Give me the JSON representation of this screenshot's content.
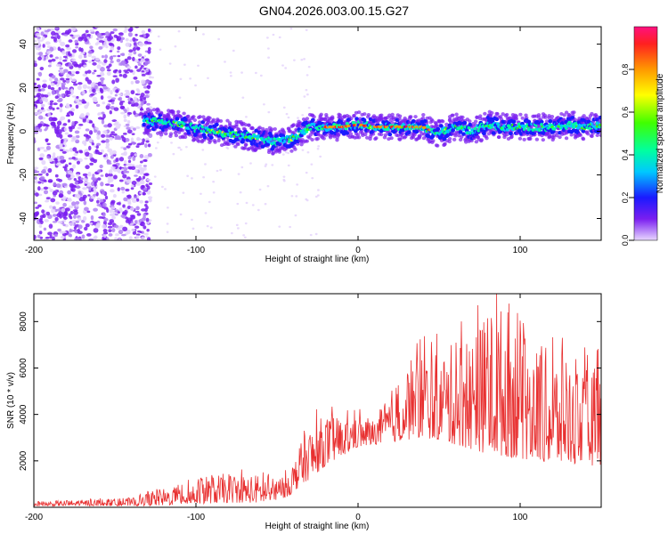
{
  "title": "GN04.2026.003.00.15.G27",
  "colors": {
    "snr_line": "#e83030",
    "dots_low": "#7a1ef0",
    "background": "#ffffff"
  },
  "chart_data": [
    {
      "type": "heatmap",
      "name": "spectrogram",
      "xlabel": "Height of straight line (km)",
      "ylabel": "Frequency (Hz)",
      "xlim": [
        -200,
        150
      ],
      "ylim": [
        -50,
        48
      ],
      "x_ticks": [
        -200,
        -100,
        0,
        100
      ],
      "y_ticks": [
        -40,
        -20,
        0,
        20,
        40
      ],
      "colorbar": {
        "label": "Normalized spectral amplitude",
        "range": [
          0,
          1
        ],
        "ticks": [
          "0.0",
          "0.2",
          "0.4",
          "0.6",
          "0.8"
        ],
        "tick_values": [
          0.0,
          0.2,
          0.4,
          0.6,
          0.8
        ]
      },
      "noise_region": {
        "x_from": -200,
        "x_to": -132,
        "level": "low (purple)"
      },
      "signal_band": {
        "x": [
          -132,
          -110,
          -90,
          -70,
          -50,
          -40,
          -30,
          -20,
          -10,
          0,
          10,
          20,
          30,
          40,
          50,
          60,
          70,
          80,
          90,
          100,
          110,
          120,
          130,
          140,
          150
        ],
        "freq": [
          5,
          3,
          0,
          -2,
          -5,
          -3,
          2,
          2,
          2,
          3,
          2,
          2,
          2,
          2,
          -1,
          2,
          0,
          3,
          2,
          2,
          2,
          2,
          3,
          2,
          3
        ]
      }
    },
    {
      "type": "line",
      "name": "snr",
      "xlabel": "Height of straight line (km)",
      "ylabel": "SNR (10 * v/v)",
      "xlim": [
        -200,
        150
      ],
      "ylim": [
        0,
        9200
      ],
      "x_ticks": [
        -200,
        -100,
        0,
        100
      ],
      "y_ticks": [
        2000,
        4000,
        6000,
        8000
      ],
      "envelope": {
        "x": [
          -200,
          -180,
          -160,
          -140,
          -120,
          -100,
          -80,
          -60,
          -50,
          -40,
          -35,
          -30,
          -20,
          -10,
          0,
          10,
          20,
          30,
          40,
          50,
          60,
          70,
          80,
          90,
          100,
          110,
          120,
          130,
          140,
          150
        ],
        "low": [
          50,
          60,
          60,
          60,
          80,
          150,
          200,
          200,
          250,
          600,
          1000,
          1200,
          1800,
          2200,
          2600,
          2700,
          2800,
          2900,
          3000,
          2900,
          2700,
          2500,
          2300,
          2200,
          2100,
          2000,
          1900,
          1900,
          1800,
          1800
        ],
        "high": [
          250,
          300,
          350,
          400,
          800,
          1200,
          1500,
          1400,
          1200,
          2000,
          2800,
          3500,
          4000,
          3800,
          3800,
          3800,
          5000,
          6200,
          6800,
          6500,
          7200,
          7500,
          8500,
          8800,
          8200,
          7000,
          6800,
          6400,
          6000,
          6200
        ]
      }
    }
  ]
}
